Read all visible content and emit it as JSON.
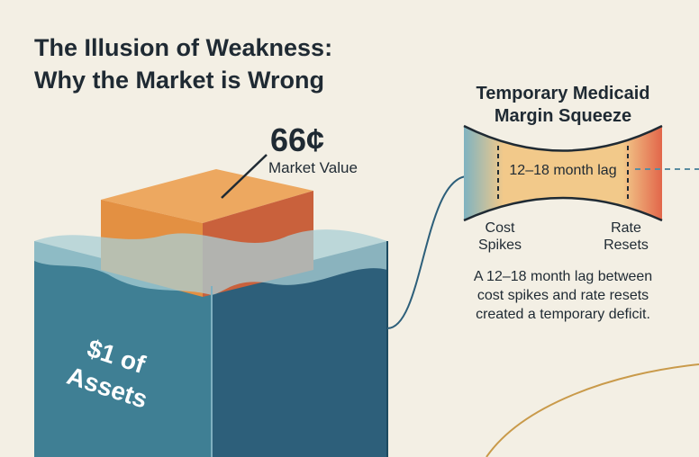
{
  "header": {
    "title_lines": [
      "The Illusion of Weakness:",
      "Why the Market is Wrong"
    ]
  },
  "cube": {
    "price": "66¢",
    "price_label": "Market Value",
    "asset_lines": [
      "$1 of",
      "Assets"
    ]
  },
  "squeeze": {
    "title_lines": [
      "Temporary Medicaid",
      "Margin Squeeze"
    ],
    "lag": "12–18 month lag",
    "left_lines": [
      "Cost",
      "Spikes"
    ],
    "right_lines": [
      "Rate",
      "Resets"
    ],
    "description_lines": [
      "A 12–18 month lag between",
      "cost spikes and rate resets",
      "created a temporary deficit."
    ]
  }
}
